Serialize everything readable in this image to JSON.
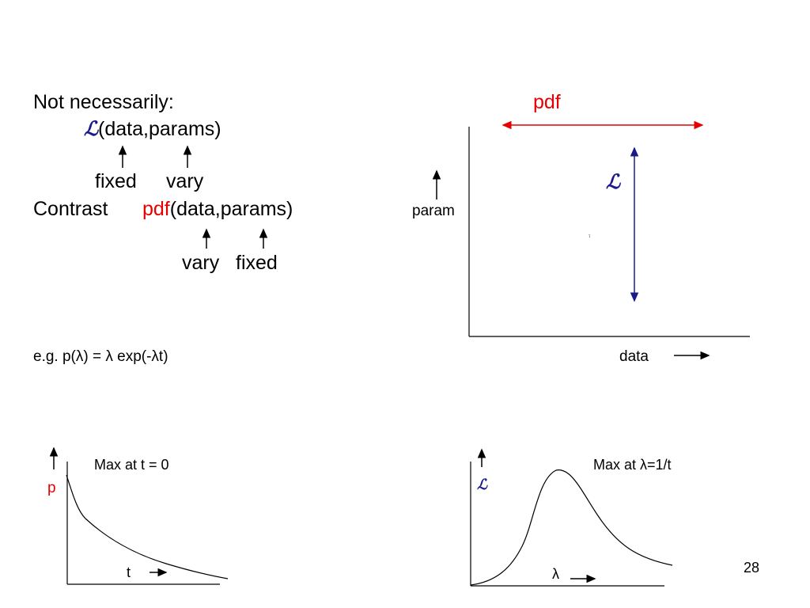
{
  "left_text": {
    "line1": "Not necessarily:",
    "likelihood_symbol": "ℒ",
    "line2_rest": "(data,params)",
    "label_fixed_1": "fixed",
    "label_vary_1": "vary",
    "contrast": "Contrast",
    "pdf_word": "pdf",
    "line4_rest": "(data,params)",
    "label_vary_2": "vary",
    "label_fixed_2": "fixed",
    "example": "e.g. p(λ) = λ exp(-λt)"
  },
  "top_right_diagram": {
    "pdf_label": "pdf",
    "likelihood_label": "ℒ",
    "y_label": "param",
    "x_label": "data",
    "tiny_mark": "τ"
  },
  "bottom_left_plot": {
    "y_label": "p",
    "annotation": "Max at t = 0",
    "x_label": "t"
  },
  "bottom_right_plot": {
    "y_label": "ℒ",
    "annotation": "Max at λ=1/t",
    "x_label": "λ"
  },
  "page_number": "28",
  "colors": {
    "pdf": "#e60000",
    "likelihood": "#1a1a8c"
  }
}
